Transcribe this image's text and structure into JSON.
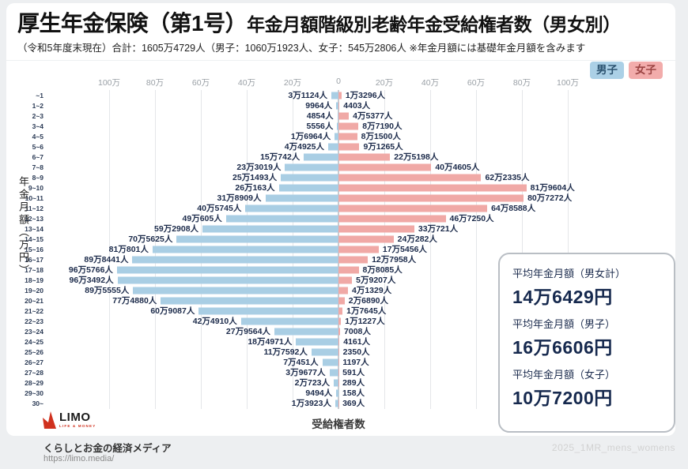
{
  "header": {
    "title_main": "厚生年金保険（第1号）",
    "title_sub": "年金月額階級別老齢年金受給権者数（男女別）",
    "subtitle": "（令和5年度末現在）合計：1605万4729人（男子：1060万1923人、女子：545万2806人 ※年金月額には基礎年金月額を含みます"
  },
  "colors": {
    "male_bar": "#a9cee4",
    "female_bar": "#f0a9a6",
    "male_chip_bg": "#abd0e6",
    "female_chip_bg": "#f2acab",
    "value_label_text": "#1b2a4a"
  },
  "averages": {
    "items": [
      {
        "label": "平均年金月額（男女計）",
        "value": "14万6429円"
      },
      {
        "label": "平均年金月額（男子）",
        "value": "16万6606円"
      },
      {
        "label": "平均年金月額（女子）",
        "value": "10万7200円"
      }
    ]
  },
  "footer": {
    "logo_name": "LIMO",
    "logo_tagline": "LIFE & MONEY",
    "media_tagline": "くらしとお金の経済メディア",
    "url": "https://limo.media/",
    "watermark": "2025_1MR_mens_womens"
  },
  "chart_data": {
    "type": "bar",
    "orientation": "horizontal-diverging",
    "title": "厚生年金保険（第1号）年金月額階級別老齢年金受給権者数（男女別）",
    "xlabel": "受給権者数",
    "ylabel": "年金月額（万円）",
    "axis_max": 1000000,
    "xlim": [
      -1000000,
      1000000
    ],
    "grid": true,
    "legend_position": "top-right",
    "ticks": [
      {
        "label": "100万",
        "v": -1000000
      },
      {
        "label": "80万",
        "v": -800000
      },
      {
        "label": "60万",
        "v": -600000
      },
      {
        "label": "40万",
        "v": -400000
      },
      {
        "label": "20万",
        "v": -200000
      },
      {
        "label": "0",
        "v": 0
      },
      {
        "label": "20万",
        "v": 200000
      },
      {
        "label": "40万",
        "v": 400000
      },
      {
        "label": "60万",
        "v": 600000
      },
      {
        "label": "80万",
        "v": 800000
      },
      {
        "label": "100万",
        "v": 1000000
      }
    ],
    "legend": [
      {
        "name": "男子",
        "color": "#a9cee4"
      },
      {
        "name": "女子",
        "color": "#f0a9a6"
      }
    ],
    "categories": [
      "~1",
      "1~2",
      "2~3",
      "3~4",
      "4~5",
      "5~6",
      "6~7",
      "7~8",
      "8~9",
      "9~10",
      "10~11",
      "11~12",
      "12~13",
      "13~14",
      "14~15",
      "15~16",
      "16~17",
      "17~18",
      "18~19",
      "19~20",
      "20~21",
      "21~22",
      "22~23",
      "23~24",
      "24~25",
      "25~26",
      "26~27",
      "27~28",
      "28~29",
      "29~30",
      "30~"
    ],
    "series": [
      {
        "name": "男子",
        "side": "left",
        "color": "#a9cee4",
        "values": [
          31124,
          9964,
          4854,
          5556,
          16964,
          44925,
          150742,
          233019,
          251493,
          260163,
          318909,
          405745,
          490605,
          592908,
          705625,
          810801,
          898441,
          965766,
          963492,
          895555,
          774880,
          609087,
          424910,
          279564,
          184971,
          117592,
          70451,
          39677,
          20723,
          9494,
          13923
        ]
      },
      {
        "name": "女子",
        "side": "right",
        "color": "#f0a9a6",
        "values": [
          13296,
          4403,
          45377,
          87190,
          81500,
          91265,
          225198,
          404605,
          622335,
          819604,
          807272,
          648588,
          467250,
          330721,
          240282,
          175456,
          127958,
          88085,
          59207,
          41329,
          26890,
          17645,
          11227,
          7008,
          4161,
          2350,
          1197,
          591,
          289,
          158,
          369
        ]
      }
    ],
    "rows": [
      {
        "cat": "~1",
        "m": 31124,
        "m_label": "3万1124人",
        "f": 13296,
        "f_label": "1万3296人"
      },
      {
        "cat": "1~2",
        "m": 9964,
        "m_label": "9964人",
        "f": 4403,
        "f_label": "4403人"
      },
      {
        "cat": "2~3",
        "m": 4854,
        "m_label": "4854人",
        "f": 45377,
        "f_label": "4万5377人"
      },
      {
        "cat": "3~4",
        "m": 5556,
        "m_label": "5556人",
        "f": 87190,
        "f_label": "8万7190人"
      },
      {
        "cat": "4~5",
        "m": 16964,
        "m_label": "1万6964人",
        "f": 81500,
        "f_label": "8万1500人"
      },
      {
        "cat": "5~6",
        "m": 44925,
        "m_label": "4万4925人",
        "f": 91265,
        "f_label": "9万1265人"
      },
      {
        "cat": "6~7",
        "m": 150742,
        "m_label": "15万742人",
        "f": 225198,
        "f_label": "22万5198人"
      },
      {
        "cat": "7~8",
        "m": 233019,
        "m_label": "23万3019人",
        "f": 404605,
        "f_label": "40万4605人"
      },
      {
        "cat": "8~9",
        "m": 251493,
        "m_label": "25万1493人",
        "f": 622335,
        "f_label": "62万2335人"
      },
      {
        "cat": "9~10",
        "m": 260163,
        "m_label": "26万163人",
        "f": 819604,
        "f_label": "81万9604人"
      },
      {
        "cat": "10~11",
        "m": 318909,
        "m_label": "31万8909人",
        "f": 807272,
        "f_label": "80万7272人"
      },
      {
        "cat": "11~12",
        "m": 405745,
        "m_label": "40万5745人",
        "f": 648588,
        "f_label": "64万8588人"
      },
      {
        "cat": "12~13",
        "m": 490605,
        "m_label": "49万605人",
        "f": 467250,
        "f_label": "46万7250人"
      },
      {
        "cat": "13~14",
        "m": 592908,
        "m_label": "59万2908人",
        "f": 330721,
        "f_label": "33万721人"
      },
      {
        "cat": "14~15",
        "m": 705625,
        "m_label": "70万5625人",
        "f": 240282,
        "f_label": "24万282人"
      },
      {
        "cat": "15~16",
        "m": 810801,
        "m_label": "81万801人",
        "f": 175456,
        "f_label": "17万5456人"
      },
      {
        "cat": "16~17",
        "m": 898441,
        "m_label": "89万8441人",
        "f": 127958,
        "f_label": "12万7958人"
      },
      {
        "cat": "17~18",
        "m": 965766,
        "m_label": "96万5766人",
        "f": 88085,
        "f_label": "8万8085人"
      },
      {
        "cat": "18~19",
        "m": 963492,
        "m_label": "96万3492人",
        "f": 59207,
        "f_label": "5万9207人"
      },
      {
        "cat": "19~20",
        "m": 895555,
        "m_label": "89万5555人",
        "f": 41329,
        "f_label": "4万1329人"
      },
      {
        "cat": "20~21",
        "m": 774880,
        "m_label": "77万4880人",
        "f": 26890,
        "f_label": "2万6890人"
      },
      {
        "cat": "21~22",
        "m": 609087,
        "m_label": "60万9087人",
        "f": 17645,
        "f_label": "1万7645人"
      },
      {
        "cat": "22~23",
        "m": 424910,
        "m_label": "42万4910人",
        "f": 11227,
        "f_label": "1万1227人"
      },
      {
        "cat": "23~24",
        "m": 279564,
        "m_label": "27万9564人",
        "f": 7008,
        "f_label": "7008人"
      },
      {
        "cat": "24~25",
        "m": 184971,
        "m_label": "18万4971人",
        "f": 4161,
        "f_label": "4161人"
      },
      {
        "cat": "25~26",
        "m": 117592,
        "m_label": "11万7592人",
        "f": 2350,
        "f_label": "2350人"
      },
      {
        "cat": "26~27",
        "m": 70451,
        "m_label": "7万451人",
        "f": 1197,
        "f_label": "1197人"
      },
      {
        "cat": "27~28",
        "m": 39677,
        "m_label": "3万9677人",
        "f": 591,
        "f_label": "591人"
      },
      {
        "cat": "28~29",
        "m": 20723,
        "m_label": "2万723人",
        "f": 289,
        "f_label": "289人"
      },
      {
        "cat": "29~30",
        "m": 9494,
        "m_label": "9494人",
        "f": 158,
        "f_label": "158人"
      },
      {
        "cat": "30~",
        "m": 13923,
        "m_label": "1万3923人",
        "f": 369,
        "f_label": "369人"
      }
    ]
  }
}
